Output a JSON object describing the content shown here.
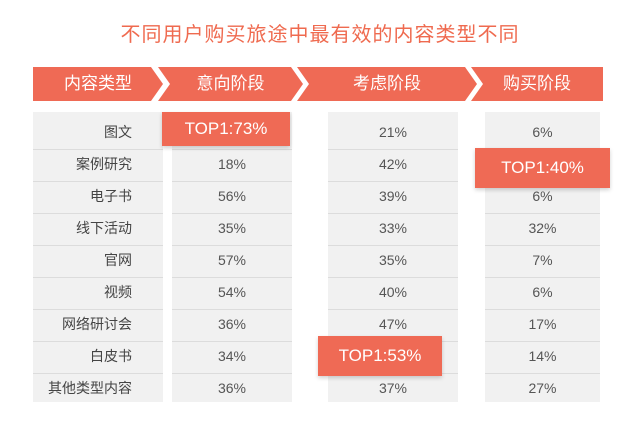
{
  "title": "不同用户购买旅途中最有效的内容类型不同",
  "colors": {
    "accent": "#ef6a55",
    "column_bg": "#f1f1f1"
  },
  "chart_data": {
    "type": "table",
    "title": "不同用户购买旅途中最有效的内容类型不同",
    "header_label": "内容类型",
    "categories": [
      "图文",
      "案例研究",
      "电子书",
      "线下活动",
      "官网",
      "视频",
      "网络研讨会",
      "白皮书",
      "其他类型内容"
    ],
    "series": [
      {
        "name": "意向阶段",
        "values": [
          "73%",
          "18%",
          "56%",
          "35%",
          "57%",
          "54%",
          "36%",
          "34%",
          "36%"
        ],
        "highlight_index": 0,
        "highlight_text": "TOP1:73%"
      },
      {
        "name": "考虑阶段",
        "values": [
          "21%",
          "42%",
          "39%",
          "33%",
          "35%",
          "40%",
          "47%",
          "53%",
          "37%"
        ],
        "highlight_index": 7,
        "highlight_text": "TOP1:53%"
      },
      {
        "name": "购买阶段",
        "values": [
          "6%",
          "40%",
          "6%",
          "32%",
          "7%",
          "6%",
          "17%",
          "14%",
          "27%"
        ],
        "highlight_index": 1,
        "highlight_text": "TOP1:40%"
      }
    ]
  }
}
